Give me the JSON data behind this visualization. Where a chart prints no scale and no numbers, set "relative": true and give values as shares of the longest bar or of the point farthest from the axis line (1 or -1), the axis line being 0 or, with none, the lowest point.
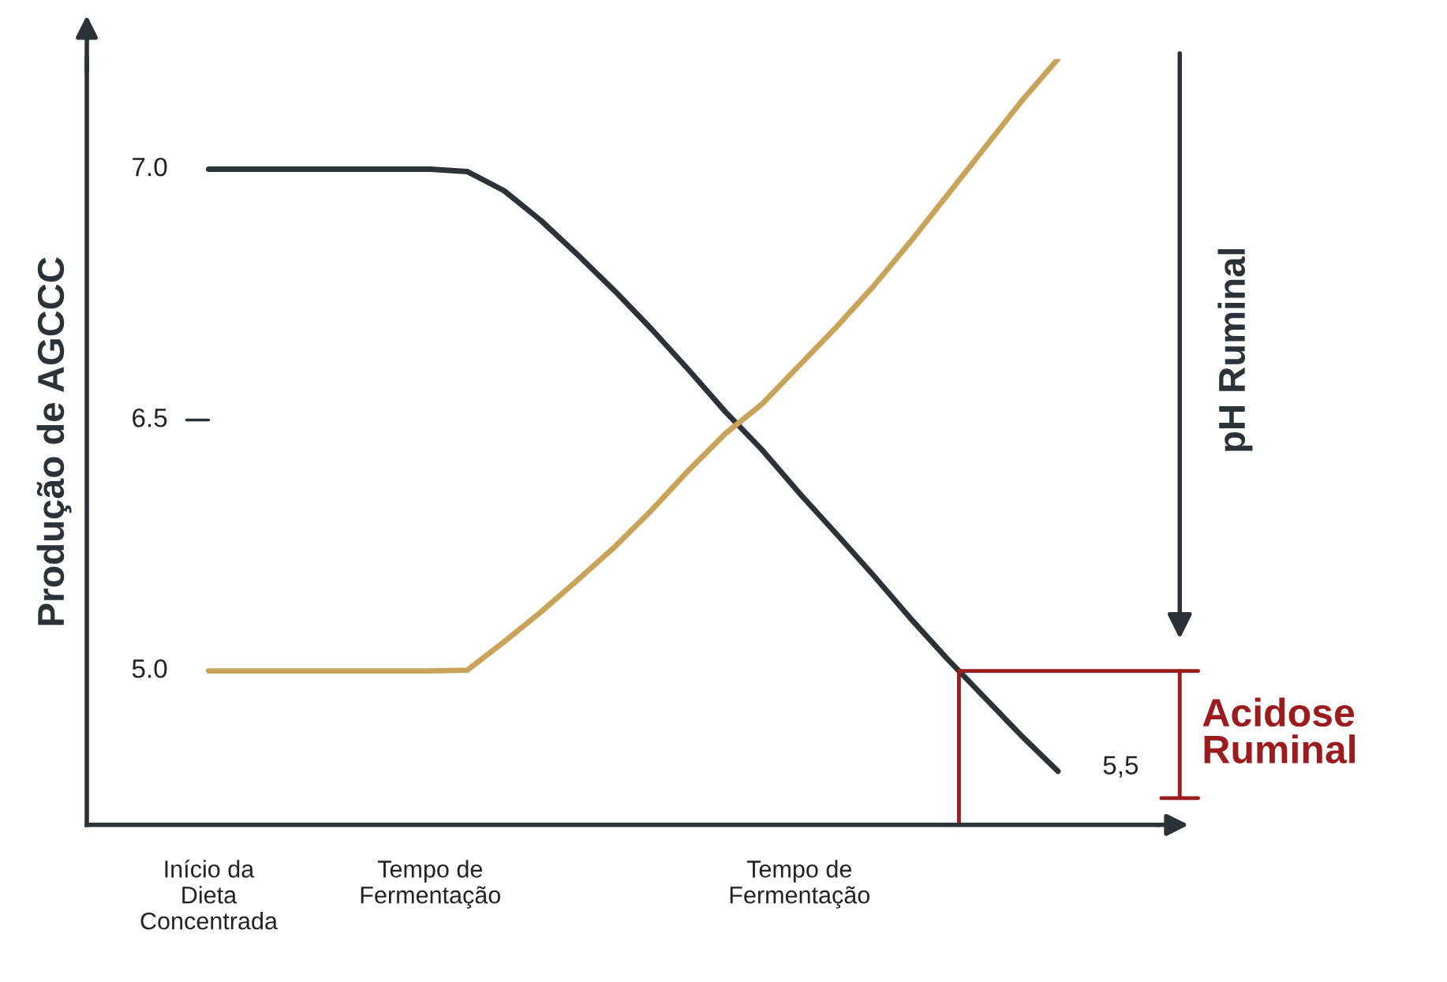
{
  "chart_data": {
    "type": "line",
    "ylabel": "Produção de AGCCC",
    "relative": true,
    "categories": [
      "Início da\nDieta\nConcentrada",
      null,
      null,
      null,
      null,
      null,
      "Tempo de\nFermentação",
      null,
      null,
      null,
      null,
      null,
      null,
      null,
      null,
      null,
      "Tempo de\nFermentação",
      null,
      null,
      null,
      null,
      null,
      null,
      null,
      null
    ],
    "series": [
      {
        "color": "#2b3338",
        "values": [
          0.856,
          0.856,
          0.856,
          0.856,
          0.856,
          0.856,
          0.856,
          0.853,
          0.828,
          0.789,
          0.744,
          0.697,
          0.647,
          0.594,
          0.539,
          0.489,
          0.433,
          0.38,
          0.326,
          0.27,
          0.217,
          0.167,
          0.117,
          0.07,
          null
        ]
      },
      {
        "color": "#c9a35a",
        "values": [
          0.201,
          0.201,
          0.201,
          0.201,
          0.201,
          0.201,
          0.201,
          0.202,
          0.239,
          0.278,
          0.32,
          0.363,
          0.411,
          0.463,
          0.511,
          0.55,
          0.6,
          0.65,
          0.703,
          0.761,
          0.822,
          0.883,
          0.944,
          1.0,
          null
        ]
      }
    ],
    "annotations": [
      "7.0",
      "6.5",
      "5.0",
      "pH Ruminal",
      "Acidose Ruminal",
      "5,5"
    ],
    "grid": false,
    "legend": false,
    "marker": "none",
    "line_style": "solid"
  }
}
